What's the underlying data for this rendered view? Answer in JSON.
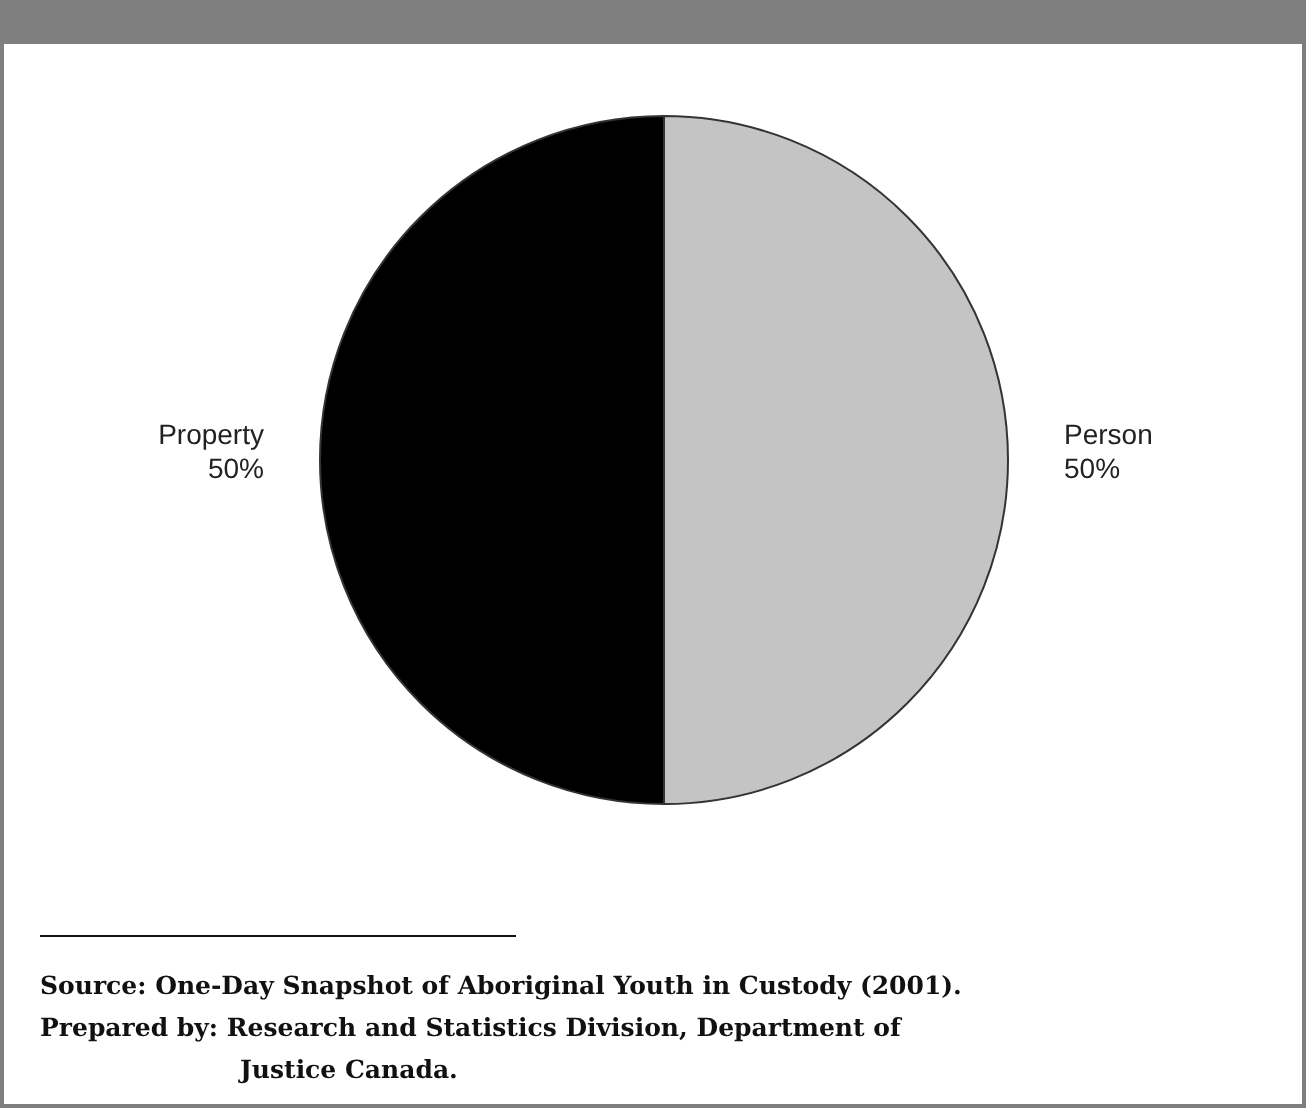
{
  "chart_data": {
    "type": "pie",
    "categories": [
      "Person",
      "Property"
    ],
    "values": [
      50,
      50
    ],
    "colors": [
      "#c4c4c4",
      "#000000"
    ],
    "value_labels": [
      "50%",
      "50%"
    ],
    "annotations": [
      "Source: One-Day Snapshot of Aboriginal Youth in Custody (2001).",
      "Prepared by: Research and Statistics Division, Department of Justice Canada."
    ]
  }
}
